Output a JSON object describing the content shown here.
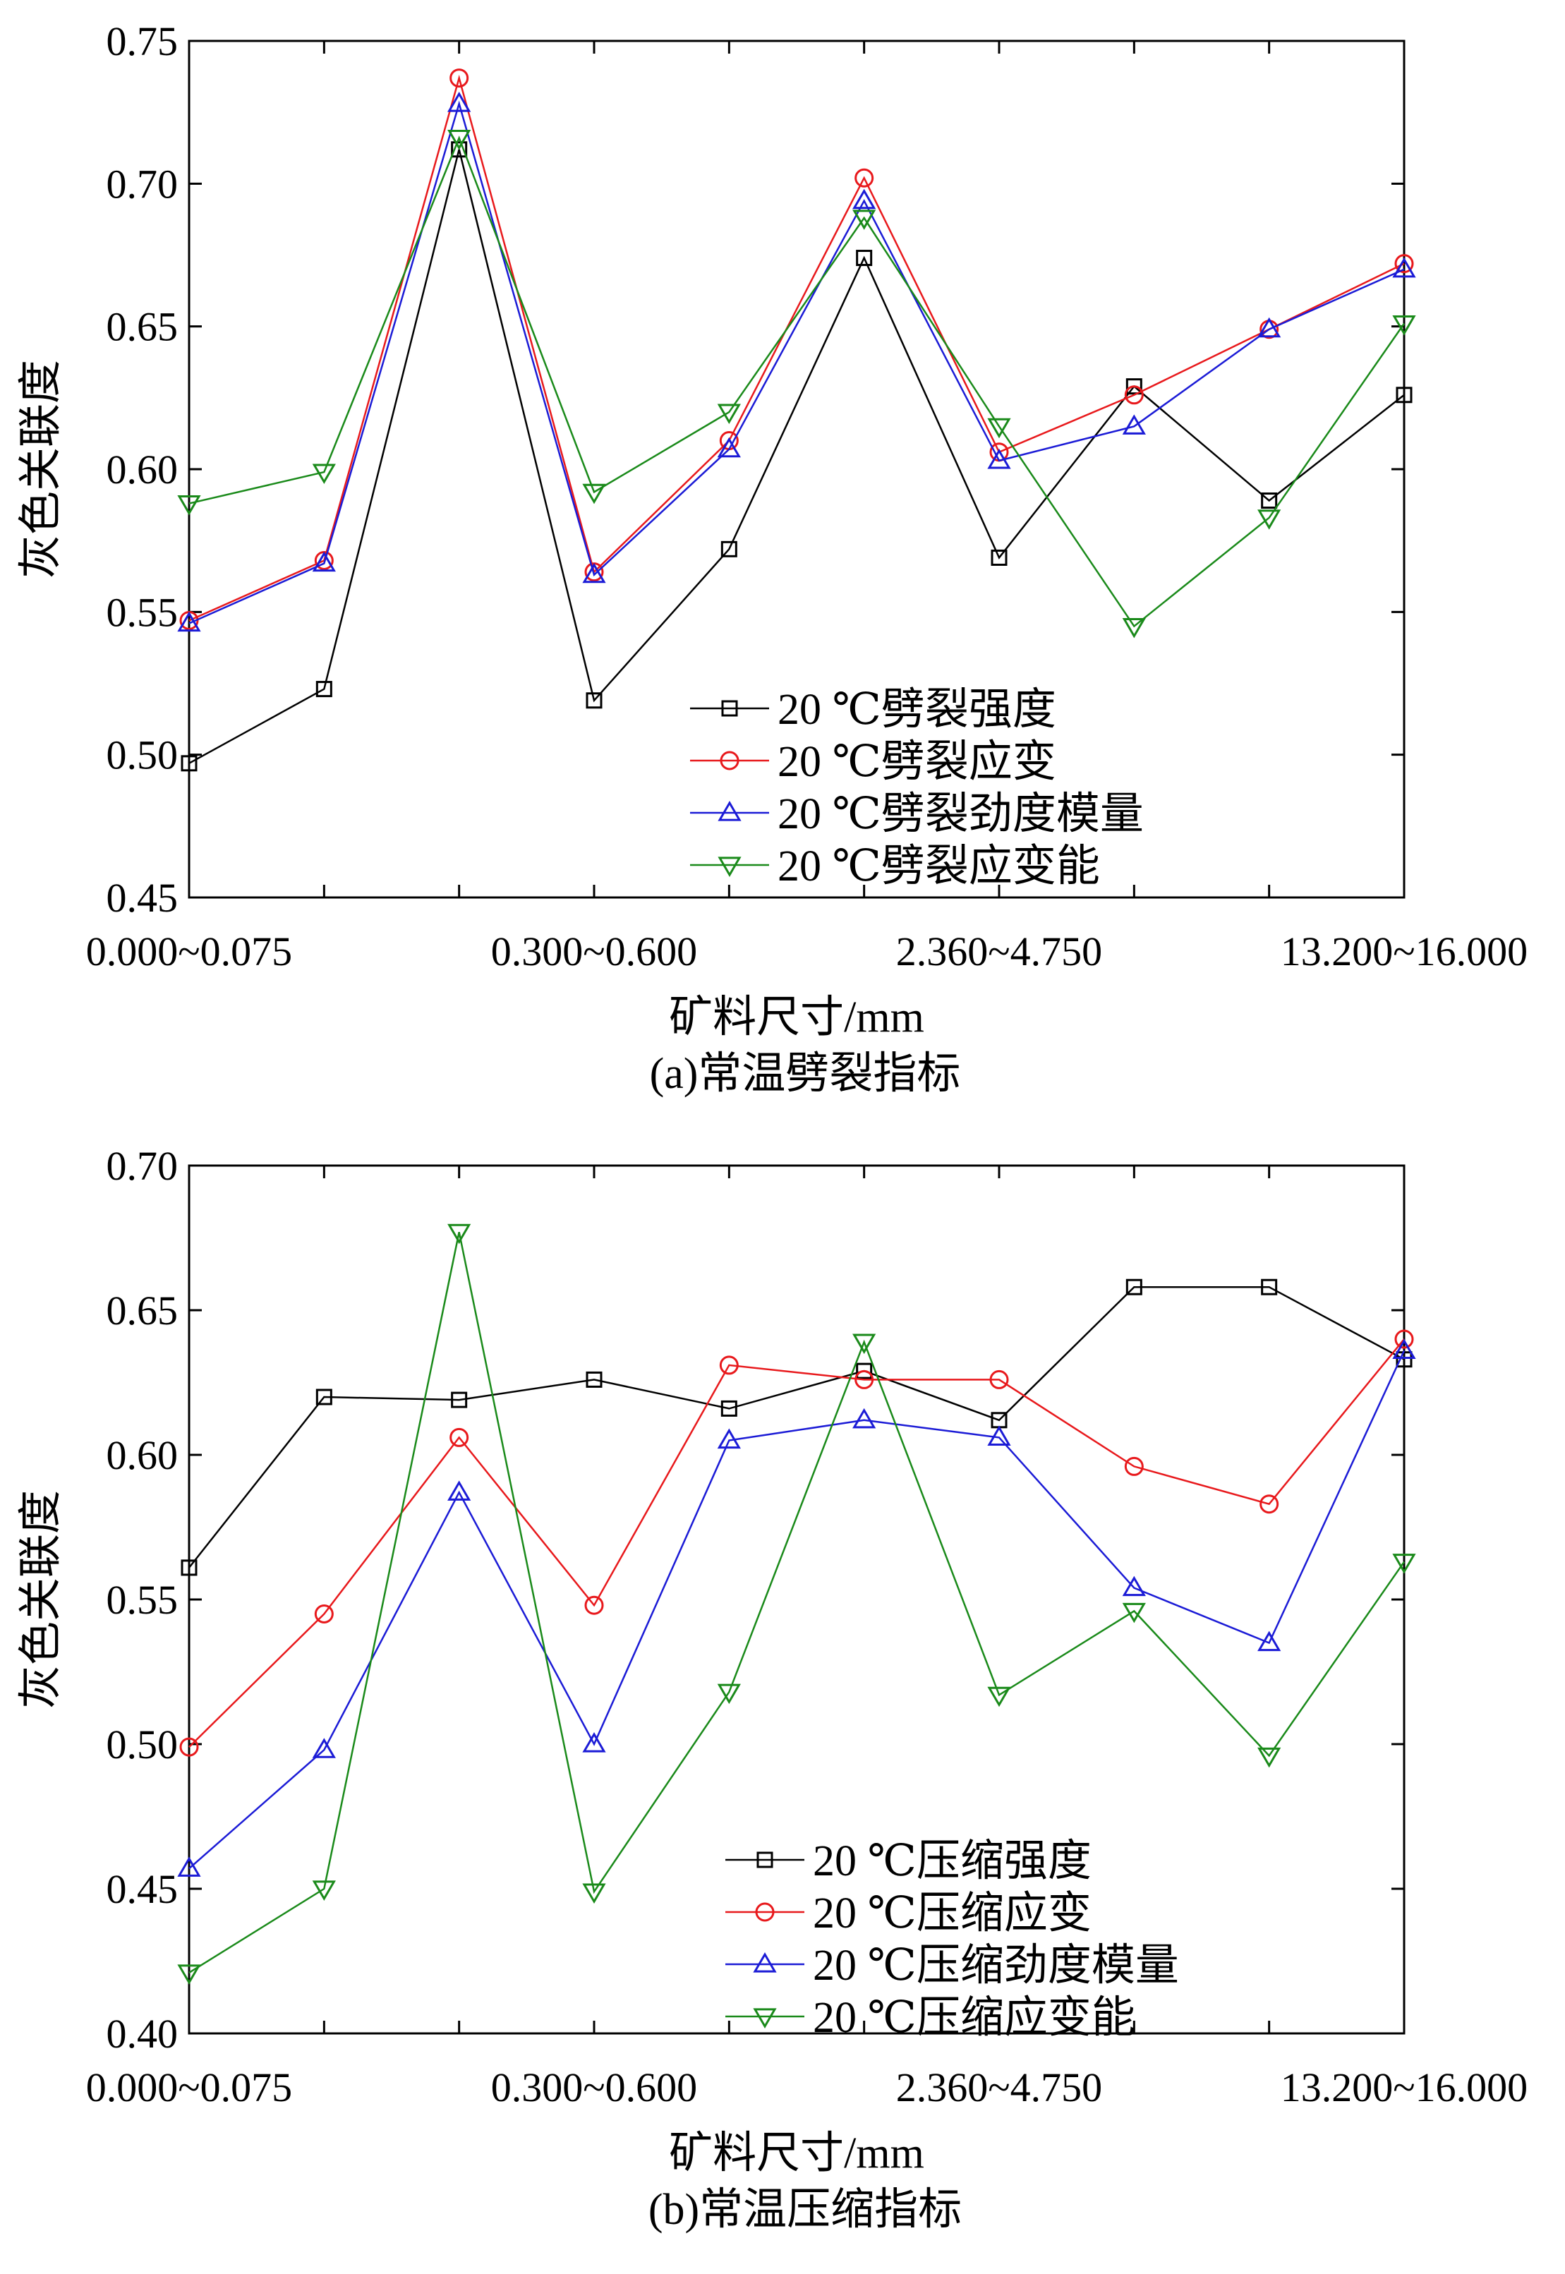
{
  "chart_data": [
    {
      "type": "line",
      "x": [
        1,
        2,
        3,
        4,
        5,
        6,
        7,
        8,
        9,
        10
      ],
      "tick_labels": [
        "0.000~0.075",
        "0.300~0.600",
        "2.360~4.750",
        "13.200~16.000"
      ],
      "tick_label_positions": [
        1,
        4,
        7,
        10
      ],
      "ylim": [
        0.45,
        0.75
      ],
      "yticks": [
        "0.45",
        "0.50",
        "0.55",
        "0.60",
        "0.65",
        "0.70",
        "0.75"
      ],
      "ytick_values": [
        0.45,
        0.5,
        0.55,
        0.6,
        0.65,
        0.7,
        0.75
      ],
      "xlabel": "矿料尺寸/mm",
      "ylabel": "灰色关联度",
      "caption": "(a)常温劈裂指标",
      "legend_position": "lower-right",
      "series": [
        {
          "name": "20 ℃劈裂强度",
          "color": "#000000",
          "marker": "square",
          "values": [
            0.497,
            0.523,
            0.712,
            0.519,
            0.572,
            0.674,
            0.569,
            0.629,
            0.589,
            0.626
          ]
        },
        {
          "name": "20 ℃劈裂应变",
          "color": "#e8191c",
          "marker": "circle",
          "values": [
            0.547,
            0.568,
            0.737,
            0.564,
            0.61,
            0.702,
            0.606,
            0.626,
            0.649,
            0.672
          ]
        },
        {
          "name": "20 ℃劈裂劲度模量",
          "color": "#1b1bd6",
          "marker": "triangle-up",
          "values": [
            0.546,
            0.567,
            0.728,
            0.563,
            0.607,
            0.694,
            0.603,
            0.615,
            0.649,
            0.67
          ]
        },
        {
          "name": "20 ℃劈裂应变能",
          "color": "#1a8a1a",
          "marker": "triangle-down",
          "values": [
            0.588,
            0.599,
            0.716,
            0.592,
            0.62,
            0.688,
            0.615,
            0.545,
            0.583,
            0.651
          ]
        }
      ]
    },
    {
      "type": "line",
      "x": [
        1,
        2,
        3,
        4,
        5,
        6,
        7,
        8,
        9,
        10
      ],
      "tick_labels": [
        "0.000~0.075",
        "0.300~0.600",
        "2.360~4.750",
        "13.200~16.000"
      ],
      "tick_label_positions": [
        1,
        4,
        7,
        10
      ],
      "ylim": [
        0.4,
        0.7
      ],
      "yticks": [
        "0.40",
        "0.45",
        "0.50",
        "0.55",
        "0.60",
        "0.65",
        "0.70"
      ],
      "ytick_values": [
        0.4,
        0.45,
        0.5,
        0.55,
        0.6,
        0.65,
        0.7
      ],
      "xlabel": "矿料尺寸/mm",
      "ylabel": "灰色关联度",
      "caption": "(b)常温压缩指标",
      "legend_position": "lower-right",
      "series": [
        {
          "name": "20 ℃压缩强度",
          "color": "#000000",
          "marker": "square",
          "values": [
            0.561,
            0.62,
            0.619,
            0.626,
            0.616,
            0.629,
            0.612,
            0.658,
            0.658,
            0.633
          ]
        },
        {
          "name": "20 ℃压缩应变",
          "color": "#e8191c",
          "marker": "circle",
          "values": [
            0.499,
            0.545,
            0.606,
            0.548,
            0.631,
            0.626,
            0.626,
            0.596,
            0.583,
            0.64
          ]
        },
        {
          "name": "20 ℃压缩劲度模量",
          "color": "#1b1bd6",
          "marker": "triangle-up",
          "values": [
            0.457,
            0.498,
            0.587,
            0.5,
            0.605,
            0.612,
            0.606,
            0.554,
            0.535,
            0.636
          ]
        },
        {
          "name": "20 ℃压缩应变能",
          "color": "#1a8a1a",
          "marker": "triangle-down",
          "values": [
            0.421,
            0.45,
            0.677,
            0.449,
            0.518,
            0.639,
            0.517,
            0.546,
            0.496,
            0.563
          ]
        }
      ]
    }
  ]
}
